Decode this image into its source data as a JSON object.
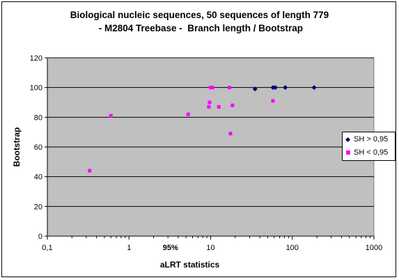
{
  "chart_data": {
    "type": "scatter",
    "title_line1": "Biological nucleic sequences, 50 sequences of length 779",
    "title_line2": " - M2804 Treebase -  Branch length / Bootstrap",
    "xlabel": "aLRT statistics",
    "ylabel": "Bootstrap",
    "xscale": "log",
    "xlim": [
      0.1,
      1000
    ],
    "ylim": [
      0,
      120
    ],
    "x_ticks": [
      "0,1",
      "1",
      "10",
      "100",
      "1000"
    ],
    "y_ticks": [
      "0",
      "20",
      "40",
      "60",
      "80",
      "100",
      "120"
    ],
    "annotation": "95%",
    "annotation_x": 3.84,
    "grid": "horizontal major gridlines",
    "legend_position": "right",
    "plot_background": "#c0c0c0",
    "series": [
      {
        "name": "SH > 0,95",
        "marker": "diamond",
        "color": "#000080",
        "points": [
          [
            35,
            99
          ],
          [
            58,
            100
          ],
          [
            62,
            100
          ],
          [
            82,
            100
          ],
          [
            185,
            100
          ]
        ]
      },
      {
        "name": "SH < 0,95",
        "marker": "square",
        "color": "#ff00ff",
        "points": [
          [
            0.33,
            44
          ],
          [
            0.6,
            81
          ],
          [
            5.3,
            82
          ],
          [
            9.5,
            87
          ],
          [
            9.7,
            90
          ],
          [
            10,
            100
          ],
          [
            10.5,
            100
          ],
          [
            12.6,
            87
          ],
          [
            17,
            100
          ],
          [
            17.5,
            69
          ],
          [
            18.5,
            88
          ],
          [
            58,
            91
          ]
        ]
      }
    ]
  }
}
